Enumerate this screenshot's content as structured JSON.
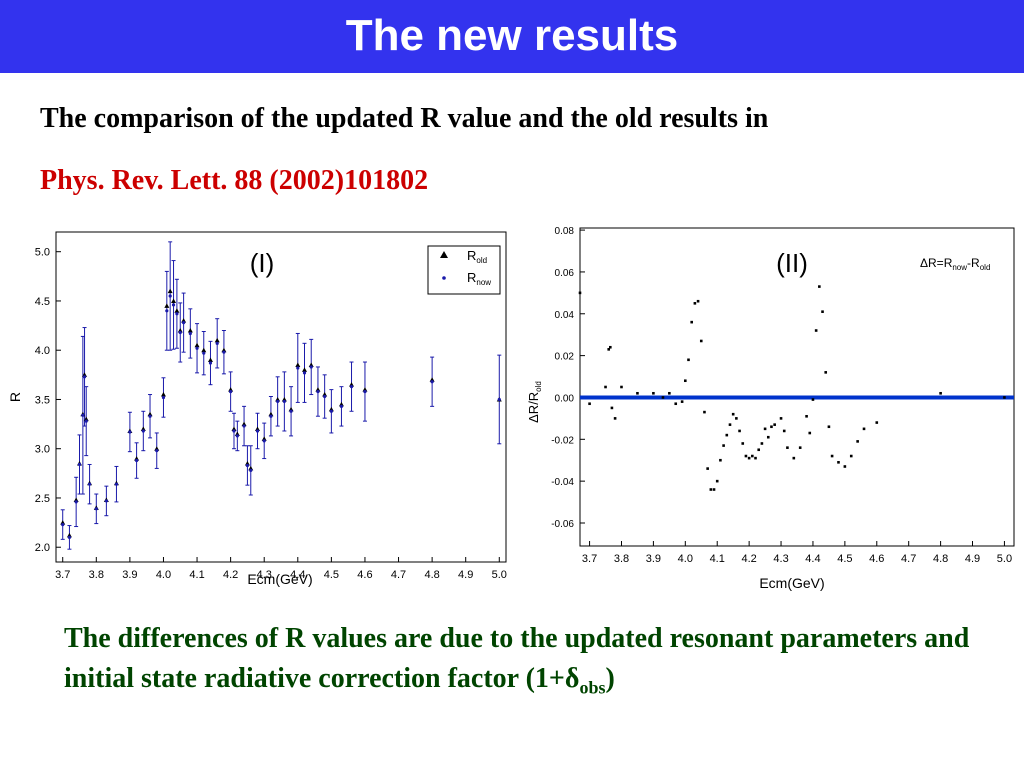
{
  "slide": {
    "title": "The new results",
    "line1": "The comparison of the updated R value and the old results in",
    "line2": "Phys. Rev. Lett. 88 (2002)101802",
    "note_text": "The differences of R values are due to the updated resonant parameters and initial state radiative correction factor (1+",
    "note_symbol": "δ",
    "note_sub": "obs",
    "note_close": ")"
  },
  "colors": {
    "title_bar": "#3333ee",
    "line2": "#cc0000",
    "note": "#004400",
    "series_now": "#1a1aaa",
    "series_old": "#000000",
    "zero_line": "#0033cc"
  },
  "chart_data": [
    {
      "type": "scatter",
      "title": "(I)",
      "xlabel": "Ecm(GeV)",
      "ylabel": "R",
      "xlim": [
        3.68,
        5.02
      ],
      "ylim": [
        1.85,
        5.2
      ],
      "xticks": [
        "3.7",
        "3.8",
        "3.9",
        "4.0",
        "4.1",
        "4.2",
        "4.3",
        "4.4",
        "4.5",
        "4.6",
        "4.7",
        "4.8",
        "4.9",
        "5.0"
      ],
      "yticks": [
        "2.0",
        "2.5",
        "3.0",
        "3.5",
        "4.0",
        "4.5",
        "5.0"
      ],
      "legend": {
        "old": "R",
        "old_sub": "old",
        "now": "R",
        "now_sub": "now",
        "position": "top-right"
      },
      "grid": false,
      "series": [
        {
          "name": "R old",
          "marker": "triangle",
          "x": [
            3.7,
            3.72,
            3.74,
            3.75,
            3.76,
            3.765,
            3.77,
            3.78,
            3.8,
            3.83,
            3.86,
            3.9,
            3.92,
            3.94,
            3.96,
            3.98,
            4.0,
            4.01,
            4.02,
            4.03,
            4.04,
            4.05,
            4.06,
            4.08,
            4.1,
            4.12,
            4.14,
            4.16,
            4.18,
            4.2,
            4.21,
            4.22,
            4.24,
            4.25,
            4.26,
            4.28,
            4.3,
            4.32,
            4.34,
            4.36,
            4.38,
            4.4,
            4.42,
            4.44,
            4.46,
            4.48,
            4.5,
            4.53,
            4.56,
            4.6,
            4.8,
            5.0
          ],
          "y": [
            2.25,
            2.12,
            2.48,
            2.85,
            3.35,
            3.75,
            3.3,
            2.65,
            2.4,
            2.48,
            2.65,
            3.18,
            2.9,
            3.2,
            3.35,
            3.0,
            3.55,
            4.45,
            4.6,
            4.5,
            4.4,
            4.2,
            4.3,
            4.2,
            4.05,
            4.0,
            3.9,
            4.1,
            4.0,
            3.6,
            3.2,
            3.15,
            3.25,
            2.85,
            2.8,
            3.2,
            3.1,
            3.35,
            3.5,
            3.5,
            3.4,
            3.85,
            3.8,
            3.85,
            3.6,
            3.55,
            3.4,
            3.45,
            3.65,
            3.6,
            3.7,
            3.5
          ]
        },
        {
          "name": "R now",
          "marker": "dot",
          "x": [
            3.7,
            3.72,
            3.74,
            3.75,
            3.76,
            3.765,
            3.77,
            3.78,
            3.8,
            3.83,
            3.86,
            3.9,
            3.92,
            3.94,
            3.96,
            3.98,
            4.0,
            4.01,
            4.02,
            4.03,
            4.04,
            4.05,
            4.06,
            4.08,
            4.1,
            4.12,
            4.14,
            4.16,
            4.18,
            4.2,
            4.21,
            4.22,
            4.24,
            4.25,
            4.26,
            4.28,
            4.3,
            4.32,
            4.34,
            4.36,
            4.38,
            4.4,
            4.42,
            4.44,
            4.46,
            4.48,
            4.5,
            4.53,
            4.56,
            4.6,
            4.8,
            5.0
          ],
          "y": [
            2.23,
            2.1,
            2.46,
            2.84,
            3.34,
            3.73,
            3.28,
            2.64,
            2.39,
            2.47,
            2.64,
            3.17,
            2.88,
            3.18,
            3.33,
            2.98,
            3.52,
            4.4,
            4.55,
            4.46,
            4.37,
            4.18,
            4.28,
            4.17,
            4.02,
            3.97,
            3.87,
            4.07,
            3.98,
            3.58,
            3.18,
            3.13,
            3.23,
            2.83,
            2.78,
            3.18,
            3.08,
            3.33,
            3.48,
            3.48,
            3.38,
            3.82,
            3.77,
            3.83,
            3.58,
            3.53,
            3.38,
            3.43,
            3.63,
            3.58,
            3.68,
            3.5
          ],
          "err": [
            0.15,
            0.12,
            0.25,
            0.3,
            0.8,
            0.5,
            0.35,
            0.2,
            0.15,
            0.15,
            0.18,
            0.2,
            0.18,
            0.2,
            0.22,
            0.18,
            0.2,
            0.4,
            0.55,
            0.45,
            0.35,
            0.3,
            0.3,
            0.25,
            0.25,
            0.22,
            0.22,
            0.25,
            0.22,
            0.2,
            0.18,
            0.15,
            0.2,
            0.2,
            0.25,
            0.18,
            0.18,
            0.2,
            0.25,
            0.3,
            0.25,
            0.35,
            0.3,
            0.28,
            0.25,
            0.22,
            0.22,
            0.2,
            0.25,
            0.3,
            0.25,
            0.45
          ]
        }
      ]
    },
    {
      "type": "scatter",
      "title": "(II)",
      "xlabel": "Ecm(GeV)",
      "ylabel": "ΔR/R",
      "ylabel_sub": "old",
      "annotation": "ΔR=R",
      "annotation_sub1": "now",
      "annotation_mid": "-R",
      "annotation_sub2": "old",
      "xlim": [
        3.67,
        5.03
      ],
      "ylim": [
        -0.071,
        0.081
      ],
      "xticks": [
        "3.7",
        "3.8",
        "3.9",
        "4.0",
        "4.1",
        "4.2",
        "4.3",
        "4.4",
        "4.5",
        "4.6",
        "4.7",
        "4.8",
        "4.9",
        "5.0"
      ],
      "yticks": [
        "0.08",
        "0.06",
        "0.04",
        "0.02",
        "0.00",
        "-0.02",
        "-0.04",
        "-0.06"
      ],
      "grid": false,
      "series": [
        {
          "name": "ΔR/R old",
          "x": [
            3.67,
            3.7,
            3.75,
            3.76,
            3.765,
            3.77,
            3.78,
            3.8,
            3.85,
            3.9,
            3.93,
            3.95,
            3.97,
            3.99,
            4.0,
            4.01,
            4.02,
            4.03,
            4.04,
            4.05,
            4.06,
            4.07,
            4.08,
            4.09,
            4.1,
            4.11,
            4.12,
            4.13,
            4.14,
            4.15,
            4.16,
            4.17,
            4.18,
            4.19,
            4.2,
            4.21,
            4.22,
            4.23,
            4.24,
            4.25,
            4.26,
            4.27,
            4.28,
            4.3,
            4.31,
            4.32,
            4.34,
            4.36,
            4.38,
            4.39,
            4.4,
            4.41,
            4.42,
            4.43,
            4.44,
            4.45,
            4.46,
            4.48,
            4.5,
            4.52,
            4.54,
            4.56,
            4.6,
            4.8,
            5.0
          ],
          "y": [
            0.05,
            -0.003,
            0.005,
            0.023,
            0.024,
            -0.005,
            -0.01,
            0.005,
            0.002,
            0.002,
            0.0,
            0.002,
            -0.003,
            -0.002,
            0.008,
            0.018,
            0.036,
            0.045,
            0.046,
            0.027,
            -0.007,
            -0.034,
            -0.044,
            -0.044,
            -0.04,
            -0.03,
            -0.023,
            -0.018,
            -0.013,
            -0.008,
            -0.01,
            -0.016,
            -0.022,
            -0.028,
            -0.029,
            -0.028,
            -0.029,
            -0.025,
            -0.022,
            -0.015,
            -0.019,
            -0.014,
            -0.013,
            -0.01,
            -0.016,
            -0.024,
            -0.029,
            -0.024,
            -0.009,
            -0.017,
            -0.001,
            0.032,
            0.053,
            0.041,
            0.012,
            -0.014,
            -0.028,
            -0.031,
            -0.033,
            -0.028,
            -0.021,
            -0.015,
            -0.012,
            0.002,
            0.0
          ]
        }
      ]
    }
  ]
}
